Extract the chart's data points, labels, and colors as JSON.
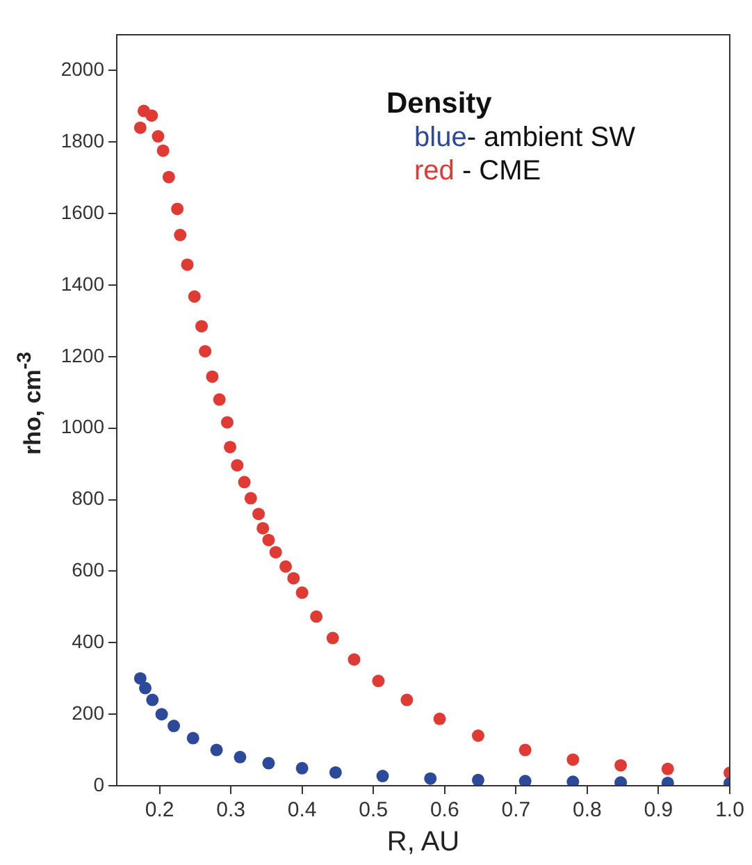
{
  "chart_data": {
    "type": "scatter",
    "xlabel": "R, AU",
    "ylabel": "rho, cm$^{-3}$",
    "legend_title": "Density",
    "legend": "top right",
    "marker": "circle",
    "grid": false,
    "xlim": [
      0.14,
      1.0
    ],
    "xticks": [
      0.2,
      0.3,
      0.4,
      0.5,
      0.6,
      0.7,
      0.8,
      0.9,
      {
        "value": 1,
        "label": "1.0"
      }
    ],
    "ylim": [
      0,
      2100
    ],
    "yticks": [
      0,
      200,
      400,
      600,
      800,
      1000,
      1200,
      1400,
      1600,
      1800,
      2000
    ],
    "series": [
      {
        "name": "blue- ambient SW",
        "color": "#2d4a9a",
        "x": [
          0.173,
          0.18,
          0.19,
          0.203,
          0.22,
          0.247,
          0.28,
          0.313,
          0.353,
          0.4,
          0.447,
          0.513,
          0.58,
          0.647,
          0.713,
          0.78,
          0.847,
          0.913,
          1.0
        ],
        "values": [
          300,
          273,
          240,
          200,
          167,
          133,
          100,
          80,
          63,
          49,
          37,
          27,
          20,
          16,
          13,
          11,
          9,
          8,
          7
        ]
      },
      {
        "name": "red - CME",
        "color": "#e03a35",
        "x": [
          0.173,
          0.178,
          0.189,
          0.198,
          0.205,
          0.213,
          0.225,
          0.229,
          0.239,
          0.249,
          0.259,
          0.264,
          0.274,
          0.284,
          0.295,
          0.299,
          0.309,
          0.319,
          0.328,
          0.339,
          0.345,
          0.353,
          0.363,
          0.377,
          0.388,
          0.4,
          0.42,
          0.443,
          0.473,
          0.507,
          0.547,
          0.593,
          0.647,
          0.713,
          0.78,
          0.847,
          0.913,
          1.0
        ],
        "values": [
          1840,
          1887,
          1874,
          1816,
          1776,
          1702,
          1613,
          1540,
          1457,
          1368,
          1285,
          1215,
          1144,
          1080,
          1016,
          947,
          896,
          849,
          804,
          760,
          720,
          687,
          653,
          613,
          580,
          540,
          473,
          413,
          353,
          293,
          240,
          187,
          140,
          100,
          73,
          57,
          47,
          36
        ]
      }
    ]
  }
}
